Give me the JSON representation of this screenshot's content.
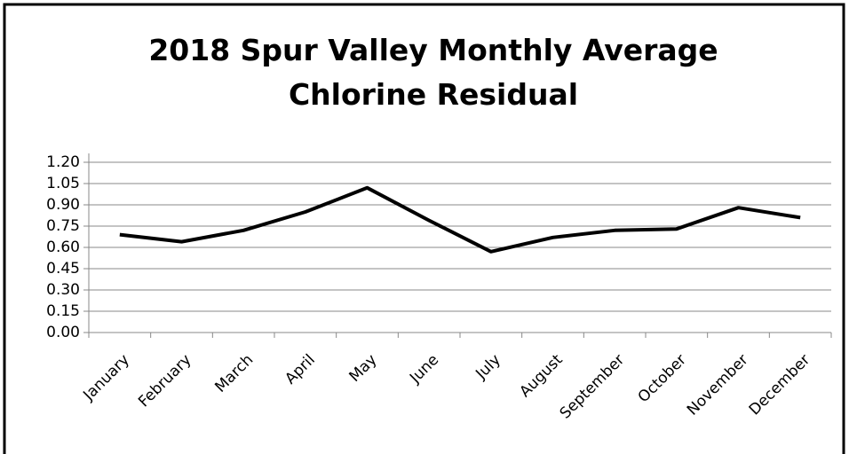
{
  "chart_data": {
    "type": "line",
    "title": "2018 Spur Valley Monthly Average Chlorine Residual",
    "categories": [
      "January",
      "February",
      "March",
      "April",
      "May",
      "June",
      "July",
      "August",
      "September",
      "October",
      "November",
      "December"
    ],
    "series": [
      {
        "color": "#000000",
        "values": [
          0.69,
          0.64,
          0.72,
          0.85,
          1.02,
          0.79,
          0.57,
          0.67,
          0.72,
          0.73,
          0.88,
          0.81
        ]
      }
    ],
    "ylim": [
      0,
      1.2
    ],
    "yticks": [
      {
        "value": 0,
        "label": "0.00"
      },
      0.15,
      {
        "value": 0.3,
        "label": "0.30"
      },
      0.45,
      {
        "value": 0.6,
        "label": "0.60"
      },
      0.75,
      {
        "value": 0.9,
        "label": "0.90"
      },
      1.05,
      {
        "value": 1.2,
        "label": "1.20"
      }
    ],
    "grid": true
  }
}
